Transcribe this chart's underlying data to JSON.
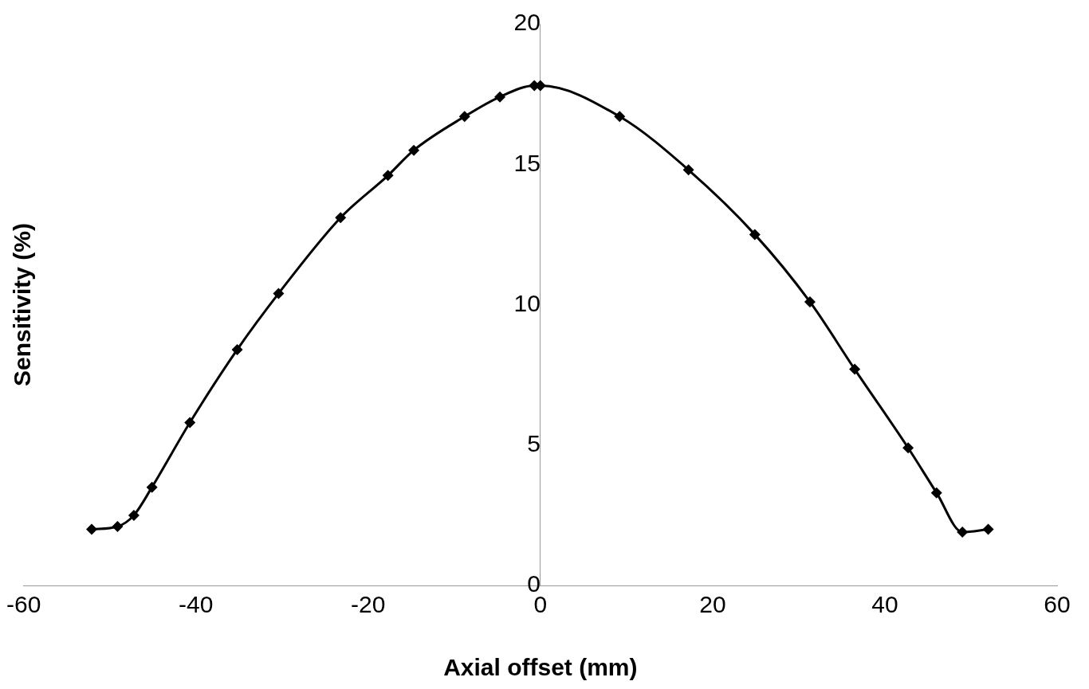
{
  "chart_data": {
    "type": "line",
    "xlabel": "Axial offset (mm)",
    "ylabel": "Sensitivity (%)",
    "x": [
      -52.1,
      -49.1,
      -47.2,
      -45.1,
      -40.7,
      -35.2,
      -30.4,
      -23.2,
      -17.7,
      -14.7,
      -8.8,
      -4.7,
      -0.7,
      0,
      9.2,
      17.2,
      24.9,
      31.3,
      36.5,
      42.7,
      46.0,
      49.0,
      52.0
    ],
    "series": [
      {
        "color": "#000000",
        "values": [
          2.0,
          2.1,
          2.5,
          3.5,
          5.8,
          8.4,
          10.4,
          13.1,
          14.6,
          15.5,
          16.7,
          17.4,
          17.8,
          17.8,
          16.7,
          14.8,
          12.5,
          10.1,
          7.7,
          4.9,
          3.3,
          1.9,
          2.0
        ]
      }
    ],
    "xlim": [
      -60,
      60
    ],
    "xticks": [
      -60,
      -40,
      -20,
      0,
      20,
      40,
      60
    ],
    "ylim": [
      0,
      20
    ],
    "yticks": [
      0,
      5,
      10,
      15,
      20
    ],
    "grid": false,
    "legend": false,
    "marker": "diamond",
    "line_style": "solid"
  }
}
